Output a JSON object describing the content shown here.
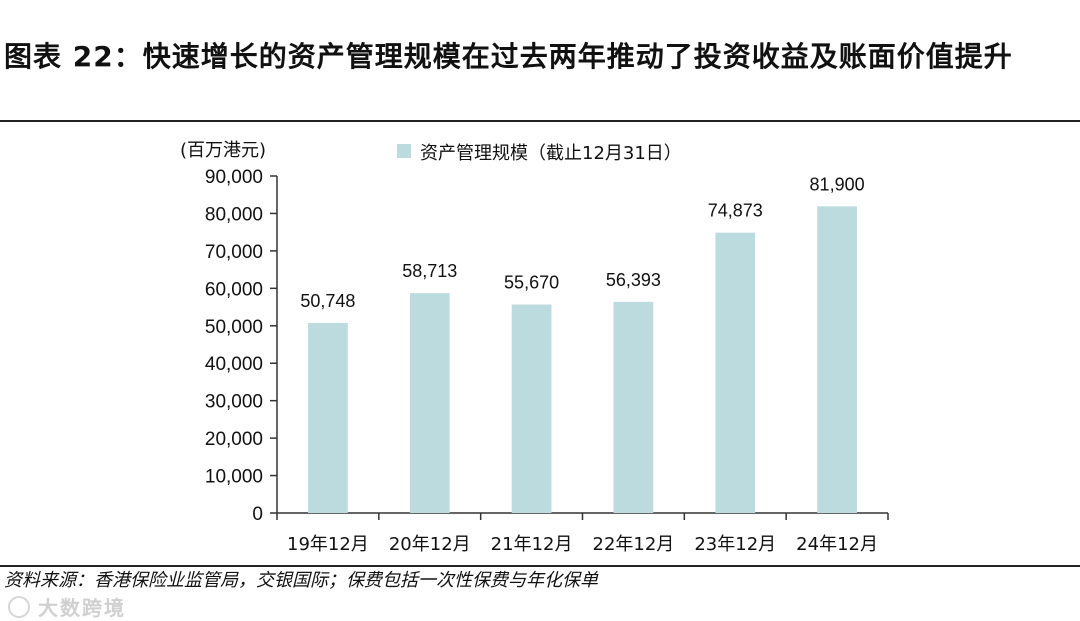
{
  "title": "图表 22：快速增长的资产管理规模在过去两年推动了投资收益及账面价值提升",
  "source": "资料来源：香港保险业监管局，交银国际；保费包括一次性保费与年化保单",
  "watermark": "大数跨境",
  "colors": {
    "bar": "#bcdbdf",
    "axis": "#333333"
  },
  "chart_data": {
    "type": "bar",
    "unit_label": "(百万港元)",
    "categories": [
      "19年12月",
      "20年12月",
      "21年12月",
      "22年12月",
      "23年12月",
      "24年12月"
    ],
    "series": [
      {
        "name": "资产管理规模（截止12月31日）",
        "values": [
          50748,
          58713,
          55670,
          56393,
          74873,
          81900
        ],
        "labels": [
          "50,748",
          "58,713",
          "55,670",
          "56,393",
          "74,873",
          "81,900"
        ]
      }
    ],
    "ylim": [
      0,
      90000
    ],
    "yticks": [
      0,
      10000,
      20000,
      30000,
      40000,
      50000,
      60000,
      70000,
      80000,
      90000
    ],
    "ytick_labels": [
      "0",
      "10,000",
      "20,000",
      "30,000",
      "40,000",
      "50,000",
      "60,000",
      "70,000",
      "80,000",
      "90,000"
    ],
    "grid": false,
    "legend_position": "top-center"
  }
}
